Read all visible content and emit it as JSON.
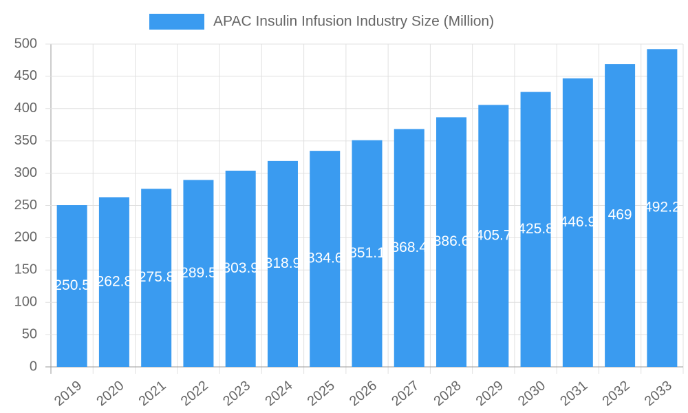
{
  "chart_data": {
    "type": "bar",
    "categories": [
      "2019",
      "2020",
      "2021",
      "2022",
      "2023",
      "2024",
      "2025",
      "2026",
      "2027",
      "2028",
      "2029",
      "2030",
      "2031",
      "2032",
      "2033"
    ],
    "series": [
      {
        "name": "APAC Insulin Infusion Industry Size (Million)",
        "color": "#3a9bf0",
        "values": [
          250.5,
          262.8,
          275.8,
          289.5,
          303.9,
          318.9,
          334.6,
          351.1,
          368.4,
          386.6,
          405.7,
          425.8,
          446.9,
          469,
          492.2
        ]
      }
    ],
    "ylim": [
      0,
      500
    ],
    "yticks": [
      0,
      50,
      100,
      150,
      200,
      250,
      300,
      350,
      400,
      450,
      500
    ],
    "grid": true
  }
}
